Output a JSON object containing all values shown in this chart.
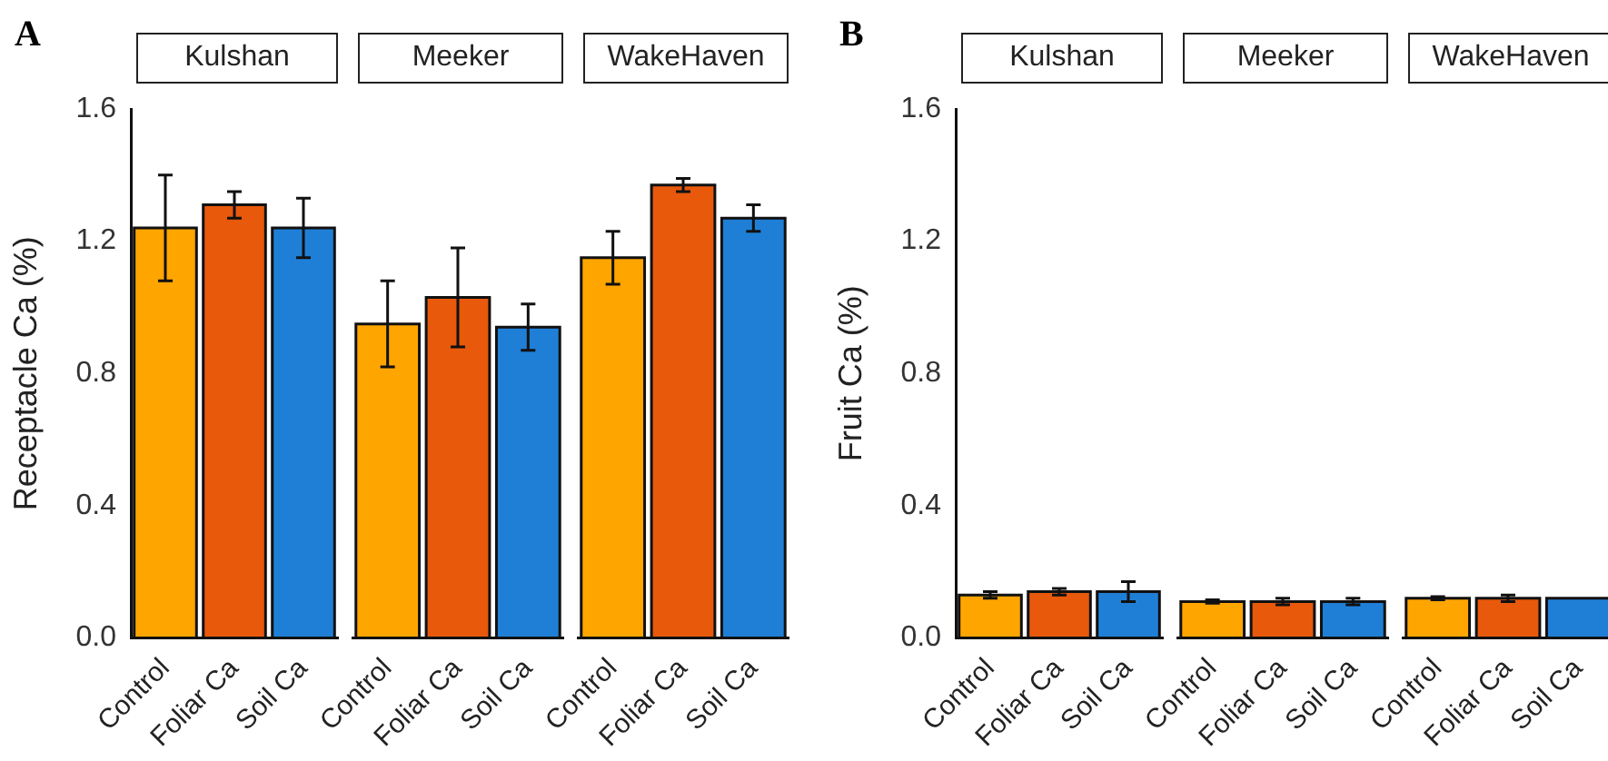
{
  "chart_data": [
    {
      "type": "bar",
      "title": "Kulshan",
      "annotations": [
        "A"
      ],
      "ylabel": "Receptacle Ca (%)",
      "categories": [
        "Control",
        "Foliar Ca",
        "Soil Ca"
      ],
      "values": [
        1.24,
        1.31,
        1.24
      ],
      "errors": [
        0.16,
        0.04,
        0.09
      ],
      "colors": [
        "#ffa500",
        "#e8590c",
        "#1f7fd6"
      ],
      "ylim": [
        0,
        1.6
      ],
      "yticks": [
        {
          "value": 0,
          "label": "0.0"
        },
        0.4,
        0.8,
        1.2,
        1.6
      ]
    },
    {
      "type": "bar",
      "title": "Meeker",
      "categories": [
        "Control",
        "Foliar Ca",
        "Soil Ca"
      ],
      "values": [
        0.95,
        1.03,
        0.94
      ],
      "errors": [
        0.13,
        0.15,
        0.07
      ],
      "colors": [
        "#ffa500",
        "#e8590c",
        "#1f7fd6"
      ],
      "ylim": [
        0,
        1.6
      ],
      "tick_labels": "x"
    },
    {
      "type": "bar",
      "title": "WakeHaven",
      "categories": [
        "Control",
        "Foliar Ca",
        "Soil Ca"
      ],
      "values": [
        1.15,
        1.37,
        1.27
      ],
      "errors": [
        0.08,
        0.02,
        0.04
      ],
      "colors": [
        "#ffa500",
        "#e8590c",
        "#1f7fd6"
      ],
      "ylim": [
        0,
        1.6
      ],
      "tick_labels": "x"
    },
    {
      "type": "bar",
      "title": "Kulshan",
      "annotations": [
        "B"
      ],
      "ylabel": "Fruit Ca (%)",
      "categories": [
        "Control",
        "Foliar Ca",
        "Soil Ca"
      ],
      "values": [
        0.13,
        0.14,
        0.14
      ],
      "errors": [
        0.01,
        0.01,
        0.03
      ],
      "colors": [
        "#ffa500",
        "#e8590c",
        "#1f7fd6"
      ],
      "ylim": [
        0,
        1.6
      ],
      "yticks": [
        {
          "value": 0,
          "label": "0.0"
        },
        0.4,
        0.8,
        1.2,
        1.6
      ]
    },
    {
      "type": "bar",
      "title": "Meeker",
      "categories": [
        "Control",
        "Foliar Ca",
        "Soil Ca"
      ],
      "values": [
        0.11,
        0.11,
        0.11
      ],
      "errors": [
        0.005,
        0.01,
        0.01
      ],
      "colors": [
        "#ffa500",
        "#e8590c",
        "#1f7fd6"
      ],
      "ylim": [
        0,
        1.6
      ],
      "tick_labels": "x"
    },
    {
      "type": "bar",
      "title": "WakeHaven",
      "categories": [
        "Control",
        "Foliar Ca",
        "Soil Ca"
      ],
      "values": [
        0.12,
        0.12,
        0.12
      ],
      "errors": [
        0.005,
        0.01,
        null
      ],
      "colors": [
        "#ffa500",
        "#e8590c",
        "#1f7fd6"
      ],
      "ylim": [
        0,
        1.6
      ],
      "tick_labels": "x"
    }
  ]
}
